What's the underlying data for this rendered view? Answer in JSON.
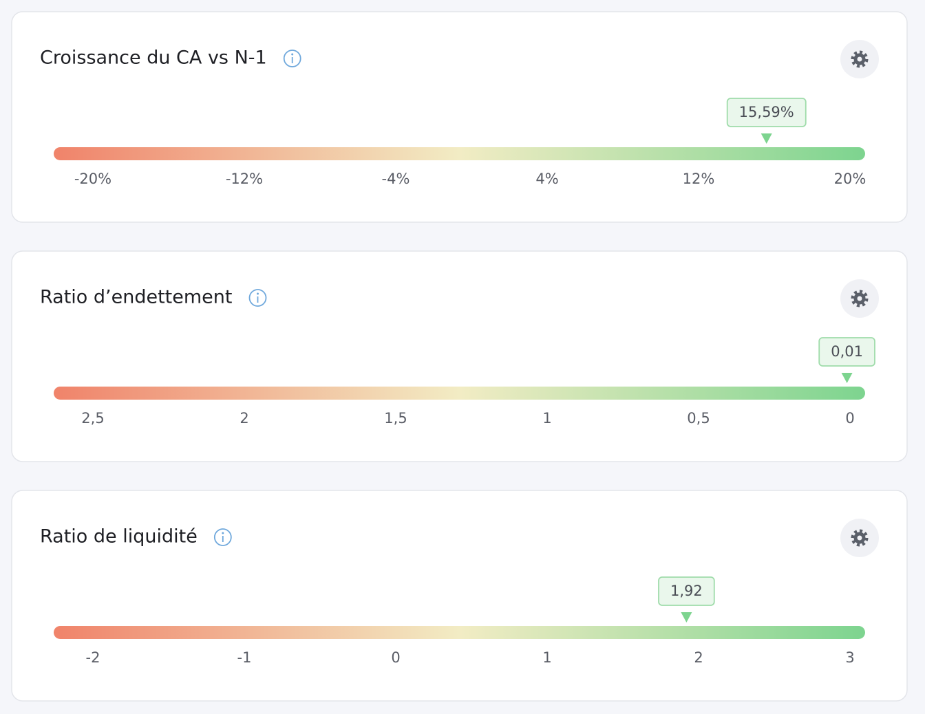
{
  "chart_data": [
    {
      "type": "gauge",
      "title": "Croissance du CA vs N-1",
      "values": [
        15.59
      ],
      "value_labels": [
        "15,59%"
      ],
      "xlim": [
        -20,
        20
      ],
      "xticks": [
        {
          "value": -20,
          "label": "-20%"
        },
        {
          "value": -12,
          "label": "-12%"
        },
        {
          "value": -4,
          "label": "-4%"
        },
        {
          "value": 4,
          "label": "4%"
        },
        {
          "value": 12,
          "label": "12%"
        },
        {
          "value": 20,
          "label": "20%"
        }
      ],
      "colors": [
        "#f0836a",
        "#f2ecc4",
        "#7dd48f"
      ]
    },
    {
      "type": "gauge",
      "title": "Ratio d’endettement",
      "values": [
        0.01
      ],
      "value_labels": [
        "0,01"
      ],
      "xlim": [
        2.5,
        0
      ],
      "xticks": [
        {
          "value": 2.5,
          "label": "2,5"
        },
        2,
        {
          "value": 1.5,
          "label": "1,5"
        },
        1,
        {
          "value": 0.5,
          "label": "0,5"
        },
        0
      ],
      "colors": [
        "#f0836a",
        "#f2ecc4",
        "#7dd48f"
      ]
    },
    {
      "type": "gauge",
      "title": "Ratio de liquidité",
      "values": [
        1.92
      ],
      "value_labels": [
        "1,92"
      ],
      "xlim": [
        -2,
        3
      ],
      "xticks": [
        -2,
        -1,
        0,
        1,
        2,
        3
      ],
      "colors": [
        "#f0836a",
        "#f2ecc4",
        "#7dd48f"
      ]
    }
  ]
}
